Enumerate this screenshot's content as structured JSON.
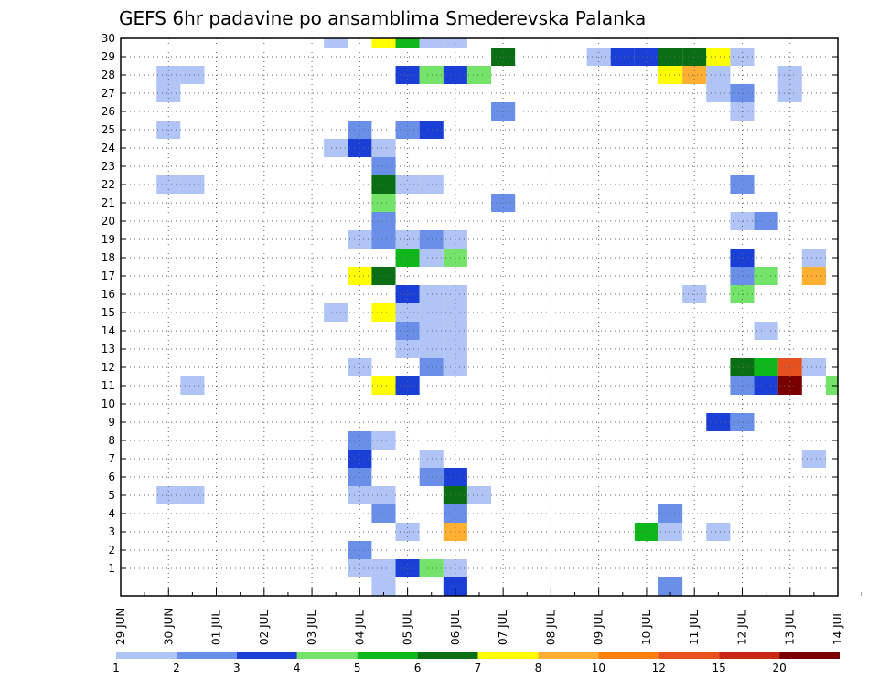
{
  "chart_data": {
    "type": "heatmap",
    "title": "GEFS 6hr padavine po ansamblima Smederevska Palanka",
    "x_tick_labels": [
      "29 JUN",
      "30 JUN",
      "01 JUL",
      "02 JUL",
      "03 JUL",
      "04 JUL",
      "05 JUL",
      "06 JUL",
      "07 JUL",
      "08 JUL",
      "09 JUL",
      "10 JUL",
      "11 JUL",
      "12 JUL",
      "13 JUL",
      "14 JUL"
    ],
    "y_range": [
      0,
      30
    ],
    "y_tick_labels": [
      1,
      2,
      3,
      4,
      5,
      6,
      7,
      8,
      9,
      10,
      11,
      12,
      13,
      14,
      15,
      16,
      17,
      18,
      19,
      20,
      21,
      22,
      23,
      24,
      25,
      26,
      27,
      28,
      29,
      30
    ],
    "grid": true,
    "colorbar": {
      "labels": [
        "1",
        "2",
        "3",
        "4",
        "5",
        "6",
        "7",
        "8",
        "10",
        "12",
        "15",
        "20"
      ],
      "colors": [
        "#b0c4f5",
        "#6a8fe8",
        "#1a3fd6",
        "#73e36a",
        "#0fb81a",
        "#0a6e14",
        "#ffff00",
        "#ffb032",
        "#ff7f0e",
        "#e8501e",
        "#c82814",
        "#7a0000"
      ]
    },
    "cells": [
      [
        4.5,
        30,
        0
      ],
      [
        5.5,
        30,
        6
      ],
      [
        6,
        30,
        4
      ],
      [
        6.5,
        30,
        0
      ],
      [
        7,
        30,
        0
      ],
      [
        19,
        30,
        8
      ],
      [
        19.5,
        30,
        7
      ],
      [
        20,
        30,
        0
      ],
      [
        22,
        30,
        5
      ],
      [
        23,
        30,
        0
      ],
      [
        23.5,
        30,
        0
      ],
      [
        24,
        30,
        1
      ],
      [
        10,
        29,
        0
      ],
      [
        10.5,
        29,
        2
      ],
      [
        11,
        29,
        2
      ],
      [
        11.5,
        29,
        5
      ],
      [
        12,
        29,
        5
      ],
      [
        12.5,
        29,
        6
      ],
      [
        13,
        29,
        0
      ],
      [
        19,
        29,
        0
      ],
      [
        20,
        29,
        0
      ],
      [
        8,
        29,
        5
      ],
      [
        1,
        28,
        0
      ],
      [
        1.5,
        28,
        0
      ],
      [
        6,
        28,
        2
      ],
      [
        6.5,
        28,
        3
      ],
      [
        7,
        28,
        2
      ],
      [
        7.5,
        28,
        3
      ],
      [
        11.5,
        28,
        6
      ],
      [
        12,
        28,
        7
      ],
      [
        12.5,
        28,
        0
      ],
      [
        14,
        28,
        0
      ],
      [
        1,
        27,
        0
      ],
      [
        12.5,
        27,
        0
      ],
      [
        13,
        27,
        1
      ],
      [
        14,
        27,
        0
      ],
      [
        20.5,
        27,
        5
      ],
      [
        21,
        27,
        10
      ],
      [
        21.5,
        27,
        1
      ],
      [
        8,
        26,
        1
      ],
      [
        13,
        26,
        0
      ],
      [
        28,
        26,
        1
      ],
      [
        1,
        25,
        0
      ],
      [
        5,
        25,
        1
      ],
      [
        6,
        25,
        1
      ],
      [
        6.5,
        25,
        2
      ],
      [
        25,
        25,
        1
      ],
      [
        4.5,
        24,
        0
      ],
      [
        5,
        24,
        2
      ],
      [
        5.5,
        24,
        0
      ],
      [
        29.5,
        24,
        0
      ],
      [
        5.5,
        23,
        1
      ],
      [
        19,
        23,
        3
      ],
      [
        19.5,
        23,
        0
      ],
      [
        20.5,
        23,
        2
      ],
      [
        21,
        23,
        3
      ],
      [
        21.5,
        23,
        0
      ],
      [
        27,
        23,
        3
      ],
      [
        29,
        23,
        0
      ],
      [
        1,
        22,
        0
      ],
      [
        1.5,
        22,
        0
      ],
      [
        5.5,
        22,
        5
      ],
      [
        6,
        22,
        0
      ],
      [
        6.5,
        22,
        0
      ],
      [
        13,
        22,
        1
      ],
      [
        5.5,
        21,
        3
      ],
      [
        8,
        21,
        1
      ],
      [
        21,
        21,
        0
      ],
      [
        25,
        21,
        1
      ],
      [
        25.5,
        21,
        9
      ],
      [
        26.5,
        21,
        0
      ],
      [
        27,
        21,
        2
      ],
      [
        28,
        21,
        3
      ],
      [
        5.5,
        20,
        1
      ],
      [
        13,
        20,
        0
      ],
      [
        13.5,
        20,
        1
      ],
      [
        16.5,
        20,
        2
      ],
      [
        5,
        19,
        0
      ],
      [
        5.5,
        19,
        1
      ],
      [
        6,
        19,
        0
      ],
      [
        6.5,
        19,
        1
      ],
      [
        7,
        19,
        0
      ],
      [
        22.5,
        19,
        0
      ],
      [
        23,
        19,
        0
      ],
      [
        6,
        18,
        4
      ],
      [
        6.5,
        18,
        0
      ],
      [
        7,
        18,
        3
      ],
      [
        13,
        18,
        2
      ],
      [
        14.5,
        18,
        0
      ],
      [
        27.5,
        18,
        5
      ],
      [
        5,
        17,
        6
      ],
      [
        5.5,
        17,
        5
      ],
      [
        13,
        17,
        1
      ],
      [
        13.5,
        17,
        3
      ],
      [
        14.5,
        17,
        7
      ],
      [
        19,
        17,
        1
      ],
      [
        22,
        17,
        1
      ],
      [
        22.5,
        17,
        0
      ],
      [
        28,
        17,
        0
      ],
      [
        28.5,
        17,
        4
      ],
      [
        29,
        17,
        0
      ],
      [
        6,
        16,
        2
      ],
      [
        6.5,
        16,
        0
      ],
      [
        7,
        16,
        0
      ],
      [
        12,
        16,
        0
      ],
      [
        13,
        16,
        3
      ],
      [
        19,
        16,
        0
      ],
      [
        21,
        16,
        1
      ],
      [
        27,
        16,
        2
      ],
      [
        27.5,
        16,
        2
      ],
      [
        4.5,
        15,
        0
      ],
      [
        5.5,
        15,
        6
      ],
      [
        6,
        15,
        0
      ],
      [
        6.5,
        15,
        0
      ],
      [
        7,
        15,
        0
      ],
      [
        22.5,
        15,
        6
      ],
      [
        6,
        14,
        1
      ],
      [
        6.5,
        14,
        0
      ],
      [
        7,
        14,
        0
      ],
      [
        13.5,
        14,
        0
      ],
      [
        6,
        13,
        0
      ],
      [
        6.5,
        13,
        0
      ],
      [
        7,
        13,
        0
      ],
      [
        5,
        12,
        0
      ],
      [
        6.5,
        12,
        1
      ],
      [
        7,
        12,
        0
      ],
      [
        13,
        12,
        5
      ],
      [
        13.5,
        12,
        4
      ],
      [
        14,
        12,
        9
      ],
      [
        14.5,
        12,
        0
      ],
      [
        15.5,
        12,
        0
      ],
      [
        16,
        12,
        0
      ],
      [
        17,
        12,
        5
      ],
      [
        17.5,
        12,
        3
      ],
      [
        1.5,
        11,
        0
      ],
      [
        5.5,
        11,
        6
      ],
      [
        6,
        11,
        2
      ],
      [
        13,
        11,
        1
      ],
      [
        13.5,
        11,
        2
      ],
      [
        14,
        11,
        11
      ],
      [
        15,
        11,
        3
      ],
      [
        15.5,
        11,
        11
      ],
      [
        16,
        11,
        0
      ],
      [
        21.5,
        11,
        0
      ],
      [
        22,
        11,
        1
      ],
      [
        24,
        11,
        4
      ],
      [
        25,
        11,
        0
      ],
      [
        25.5,
        11,
        1
      ],
      [
        27.5,
        11,
        6
      ],
      [
        28,
        11,
        0
      ],
      [
        28.5,
        11,
        1
      ],
      [
        29,
        11,
        4
      ],
      [
        29.5,
        11,
        0
      ],
      [
        21.5,
        10,
        0
      ],
      [
        22,
        10,
        3
      ],
      [
        26,
        10,
        0
      ],
      [
        12.5,
        9,
        2
      ],
      [
        13,
        9,
        1
      ],
      [
        20.5,
        9,
        3
      ],
      [
        21,
        9,
        0
      ],
      [
        5,
        8,
        1
      ],
      [
        5.5,
        8,
        0
      ],
      [
        20.5,
        8,
        5
      ],
      [
        5,
        7,
        2
      ],
      [
        6.5,
        7,
        0
      ],
      [
        14.5,
        7,
        0
      ],
      [
        24.5,
        7,
        1
      ],
      [
        30,
        7,
        10
      ],
      [
        5,
        6,
        1
      ],
      [
        6.5,
        6,
        1
      ],
      [
        7,
        6,
        2
      ],
      [
        20,
        6,
        2
      ],
      [
        21,
        6,
        0
      ],
      [
        27.5,
        6,
        7
      ],
      [
        28,
        6,
        1
      ],
      [
        29,
        6,
        1
      ],
      [
        1,
        5,
        0
      ],
      [
        1.5,
        5,
        0
      ],
      [
        5,
        5,
        0
      ],
      [
        5.5,
        5,
        0
      ],
      [
        7,
        5,
        5
      ],
      [
        7.5,
        5,
        0
      ],
      [
        16,
        5,
        0
      ],
      [
        20,
        5,
        0
      ],
      [
        22,
        5,
        8
      ],
      [
        22.5,
        5,
        5
      ],
      [
        23,
        5,
        1
      ],
      [
        23.5,
        5,
        1
      ],
      [
        25,
        5,
        1
      ],
      [
        5.5,
        4,
        1
      ],
      [
        7,
        4,
        1
      ],
      [
        11.5,
        4,
        1
      ],
      [
        22,
        4,
        0
      ],
      [
        22.5,
        4,
        9
      ],
      [
        27,
        4,
        3
      ],
      [
        27.5,
        4,
        0
      ],
      [
        28,
        4,
        0
      ],
      [
        6,
        3,
        0
      ],
      [
        7,
        3,
        7
      ],
      [
        11,
        3,
        4
      ],
      [
        11.5,
        3,
        0
      ],
      [
        12.5,
        3,
        0
      ],
      [
        15.5,
        3,
        0
      ],
      [
        18.5,
        3,
        2
      ],
      [
        19.5,
        3,
        0
      ],
      [
        20,
        3,
        1
      ],
      [
        22,
        3,
        0
      ],
      [
        22.5,
        3,
        0
      ],
      [
        5,
        2,
        1
      ],
      [
        19.5,
        2,
        0
      ],
      [
        20,
        2,
        7
      ],
      [
        5,
        1,
        0
      ],
      [
        5.5,
        1,
        0
      ],
      [
        6,
        1,
        2
      ],
      [
        6.5,
        1,
        3
      ],
      [
        7,
        1,
        0
      ],
      [
        17,
        1,
        2
      ],
      [
        17.5,
        1,
        3
      ],
      [
        19.5,
        1,
        0
      ],
      [
        5.5,
        0,
        0
      ],
      [
        7,
        0,
        2
      ],
      [
        11.5,
        0,
        1
      ],
      [
        16,
        0,
        0
      ],
      [
        16.5,
        0,
        3
      ],
      [
        17,
        0,
        3
      ],
      [
        17.5,
        0,
        2
      ],
      [
        18,
        0,
        2
      ],
      [
        18.5,
        0,
        6
      ],
      [
        19,
        0,
        1
      ],
      [
        19.5,
        0,
        7
      ],
      [
        20,
        0,
        1
      ]
    ]
  }
}
